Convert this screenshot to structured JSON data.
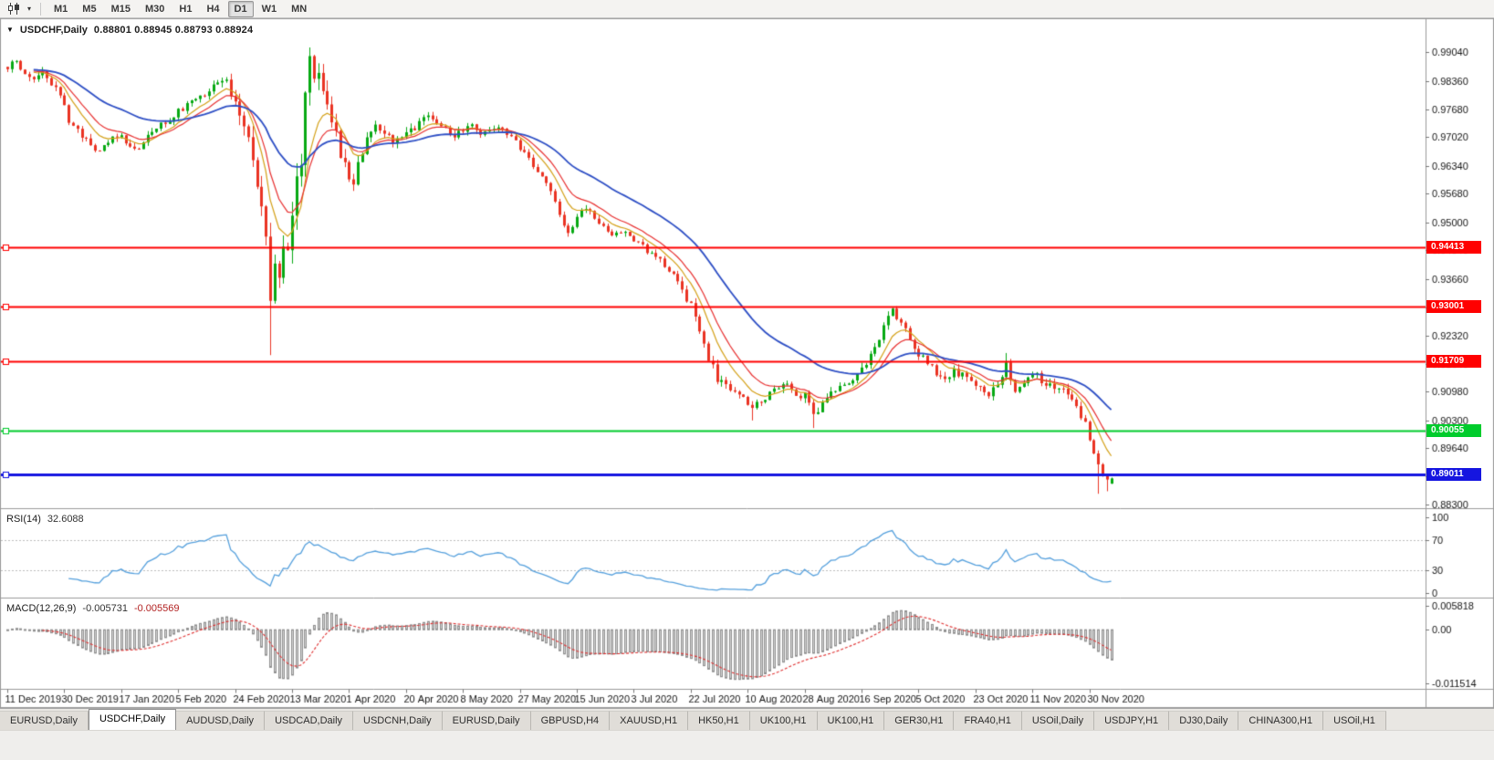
{
  "toolbar": {
    "timeframes": [
      "M1",
      "M5",
      "M15",
      "M30",
      "H1",
      "H4",
      "D1",
      "W1",
      "MN"
    ],
    "active_timeframe": "D1"
  },
  "chart": {
    "symbol_period": "USDCHF,Daily",
    "ohlc_text": "0.88801 0.88945 0.88793 0.88924"
  },
  "chart_data": {
    "type": "candlestick",
    "symbol": "USDCHF",
    "period": "Daily",
    "last_candle": {
      "open": 0.88801,
      "high": 0.88945,
      "low": 0.88793,
      "close": 0.88924
    },
    "num_candles": 253,
    "candles_per_date_label": 13,
    "date_labels": [
      "11 Dec 2019",
      "30 Dec 2019",
      "17 Jan 2020",
      "5 Feb 2020",
      "24 Feb 2020",
      "13 Mar 2020",
      "1 Apr 2020",
      "20 Apr 2020",
      "8 May 2020",
      "27 May 2020",
      "15 Jun 2020",
      "3 Jul 2020",
      "22 Jul 2020",
      "10 Aug 2020",
      "28 Aug 2020",
      "16 Sep 2020",
      "5 Oct 2020",
      "23 Oct 2020",
      "11 Nov 2020",
      "30 Nov 2020"
    ],
    "price_axis": {
      "max": 0.998,
      "min": 0.8824,
      "ticks": [
        "0.99040",
        "0.98360",
        "0.97680",
        "0.97020",
        "0.96340",
        "0.95680",
        "0.95000",
        "0.94340",
        "0.93660",
        "0.92980",
        "0.92320",
        "0.91640",
        "0.90980",
        "0.90300",
        "0.89640",
        "0.88980",
        "0.88300"
      ]
    },
    "close_anchors": [
      [
        0,
        0.9865
      ],
      [
        2,
        0.9882
      ],
      [
        4,
        0.9858
      ],
      [
        6,
        0.9846
      ],
      [
        8,
        0.9858
      ],
      [
        10,
        0.983
      ],
      [
        12,
        0.9808
      ],
      [
        14,
        0.9742
      ],
      [
        16,
        0.9718
      ],
      [
        18,
        0.97
      ],
      [
        20,
        0.9672
      ],
      [
        22,
        0.9682
      ],
      [
        24,
        0.9696
      ],
      [
        26,
        0.9706
      ],
      [
        28,
        0.9678
      ],
      [
        30,
        0.9672
      ],
      [
        32,
        0.97
      ],
      [
        34,
        0.9722
      ],
      [
        36,
        0.9738
      ],
      [
        38,
        0.9756
      ],
      [
        40,
        0.977
      ],
      [
        42,
        0.9788
      ],
      [
        44,
        0.98
      ],
      [
        46,
        0.9816
      ],
      [
        48,
        0.9832
      ],
      [
        50,
        0.984
      ],
      [
        52,
        0.9786
      ],
      [
        54,
        0.9716
      ],
      [
        56,
        0.965
      ],
      [
        58,
        0.9556
      ],
      [
        60,
        0.933
      ],
      [
        61,
        0.939
      ],
      [
        62,
        0.9372
      ],
      [
        63,
        0.942
      ],
      [
        64,
        0.9452
      ],
      [
        65,
        0.95
      ],
      [
        66,
        0.9594
      ],
      [
        67,
        0.966
      ],
      [
        68,
        0.9788
      ],
      [
        69,
        0.9872
      ],
      [
        70,
        0.984
      ],
      [
        71,
        0.9846
      ],
      [
        72,
        0.98
      ],
      [
        73,
        0.9762
      ],
      [
        74,
        0.973
      ],
      [
        75,
        0.97
      ],
      [
        76,
        0.966
      ],
      [
        77,
        0.9628
      ],
      [
        78,
        0.96
      ],
      [
        79,
        0.9578
      ],
      [
        80,
        0.9648
      ],
      [
        82,
        0.97
      ],
      [
        84,
        0.9742
      ],
      [
        86,
        0.9712
      ],
      [
        88,
        0.9682
      ],
      [
        90,
        0.97
      ],
      [
        92,
        0.9716
      ],
      [
        94,
        0.9736
      ],
      [
        96,
        0.9752
      ],
      [
        98,
        0.9736
      ],
      [
        100,
        0.9718
      ],
      [
        102,
        0.9702
      ],
      [
        104,
        0.9718
      ],
      [
        106,
        0.9736
      ],
      [
        108,
        0.9714
      ],
      [
        110,
        0.9722
      ],
      [
        112,
        0.973
      ],
      [
        114,
        0.9708
      ],
      [
        116,
        0.9692
      ],
      [
        118,
        0.9662
      ],
      [
        120,
        0.9636
      ],
      [
        122,
        0.961
      ],
      [
        124,
        0.957
      ],
      [
        126,
        0.952
      ],
      [
        128,
        0.9478
      ],
      [
        130,
        0.9512
      ],
      [
        132,
        0.9536
      ],
      [
        134,
        0.9512
      ],
      [
        136,
        0.9488
      ],
      [
        138,
        0.9472
      ],
      [
        140,
        0.9478
      ],
      [
        142,
        0.9464
      ],
      [
        144,
        0.945
      ],
      [
        146,
        0.9432
      ],
      [
        148,
        0.9416
      ],
      [
        150,
        0.9398
      ],
      [
        152,
        0.9376
      ],
      [
        154,
        0.934
      ],
      [
        156,
        0.93
      ],
      [
        158,
        0.924
      ],
      [
        160,
        0.918
      ],
      [
        162,
        0.913
      ],
      [
        164,
        0.911
      ],
      [
        166,
        0.9098
      ],
      [
        168,
        0.9086
      ],
      [
        170,
        0.906
      ],
      [
        172,
        0.9076
      ],
      [
        174,
        0.9092
      ],
      [
        176,
        0.9108
      ],
      [
        178,
        0.912
      ],
      [
        180,
        0.9092
      ],
      [
        182,
        0.9088
      ],
      [
        184,
        0.9044
      ],
      [
        186,
        0.9072
      ],
      [
        188,
        0.9092
      ],
      [
        190,
        0.9112
      ],
      [
        192,
        0.9124
      ],
      [
        194,
        0.9142
      ],
      [
        196,
        0.9166
      ],
      [
        198,
        0.92
      ],
      [
        200,
        0.9252
      ],
      [
        202,
        0.929
      ],
      [
        204,
        0.9262
      ],
      [
        206,
        0.9226
      ],
      [
        208,
        0.9186
      ],
      [
        210,
        0.9166
      ],
      [
        212,
        0.9146
      ],
      [
        214,
        0.9132
      ],
      [
        216,
        0.9146
      ],
      [
        218,
        0.9138
      ],
      [
        220,
        0.9128
      ],
      [
        222,
        0.9108
      ],
      [
        224,
        0.9086
      ],
      [
        226,
        0.9118
      ],
      [
        228,
        0.9162
      ],
      [
        230,
        0.9104
      ],
      [
        232,
        0.9126
      ],
      [
        234,
        0.9142
      ],
      [
        236,
        0.9126
      ],
      [
        238,
        0.9114
      ],
      [
        240,
        0.9104
      ],
      [
        242,
        0.9094
      ],
      [
        244,
        0.9066
      ],
      [
        246,
        0.902
      ],
      [
        247,
        0.8984
      ],
      [
        248,
        0.8952
      ],
      [
        249,
        0.892
      ],
      [
        250,
        0.8896
      ],
      [
        251,
        0.8886
      ],
      [
        252,
        0.8892
      ]
    ],
    "volatility_anchors": [
      [
        0,
        0.0018
      ],
      [
        48,
        0.0018
      ],
      [
        54,
        0.0045
      ],
      [
        60,
        0.006
      ],
      [
        66,
        0.006
      ],
      [
        72,
        0.0048
      ],
      [
        78,
        0.004
      ],
      [
        84,
        0.0026
      ],
      [
        95,
        0.0018
      ],
      [
        120,
        0.0016
      ],
      [
        150,
        0.0016
      ],
      [
        158,
        0.0024
      ],
      [
        166,
        0.0018
      ],
      [
        200,
        0.002
      ],
      [
        244,
        0.002
      ],
      [
        252,
        0.0012
      ]
    ],
    "wick_overrides": [
      {
        "i": 60,
        "low": 0.9185
      },
      {
        "i": 69,
        "high": 0.9901
      },
      {
        "i": 170,
        "low": 0.903
      },
      {
        "i": 184,
        "low": 0.9012
      },
      {
        "i": 228,
        "high": 0.919
      },
      {
        "i": 249,
        "low": 0.8856
      },
      {
        "i": 251,
        "low": 0.8862
      }
    ],
    "hlines": [
      {
        "price": 0.94413,
        "label": "0.94413",
        "color": "#FF0000",
        "width": 2
      },
      {
        "price": 0.93001,
        "label": "0.93001",
        "color": "#FF0000",
        "width": 2
      },
      {
        "price": 0.91709,
        "label": "0.91709",
        "color": "#FF0000",
        "width": 2
      },
      {
        "price": 0.90055,
        "label": "0.90055",
        "color": "#00CC2C",
        "width": 2
      },
      {
        "price": 0.89011,
        "label": "0.89011",
        "color": "#1515E0",
        "width": 3
      }
    ],
    "moving_averages": [
      {
        "period": 8,
        "type": "ema",
        "color": "#D4A017",
        "width": 1.2
      },
      {
        "period": 13,
        "type": "ema",
        "color": "#E83030",
        "width": 1.2
      },
      {
        "period": 34,
        "type": "ema",
        "color": "#2E4FC5",
        "width": 1.8
      }
    ],
    "colors": {
      "up": "#07A913",
      "down": "#EA3323",
      "background": "#FFFFFF",
      "axis_text": "#141414"
    },
    "rsi": {
      "name": "RSI(14)",
      "value": "32.6088",
      "period": 14,
      "levels": [
        30,
        70
      ],
      "axis_ticks": [
        100,
        70,
        30,
        0
      ],
      "color": "#55A0DD",
      "display_min": -5,
      "display_max": 108
    },
    "macd": {
      "name": "MACD(12,26,9)",
      "value_main": "-0.005731",
      "value_signal": "-0.005569",
      "fast": 12,
      "slow": 26,
      "signal": 9,
      "axis_top_label": "0.005818",
      "axis_zero_label": "0.00",
      "axis_bottom_label": "-0.011514",
      "display_min": -0.011514,
      "display_max": 0.005818,
      "histogram_color": "#D4D4D4",
      "histogram_border": "#8F8F8F",
      "signal_color": "#E03030"
    }
  },
  "tabs": {
    "items": [
      {
        "label": "EURUSD,Daily",
        "active": false
      },
      {
        "label": "USDCHF,Daily",
        "active": true
      },
      {
        "label": "AUDUSD,Daily",
        "active": false
      },
      {
        "label": "USDCAD,Daily",
        "active": false
      },
      {
        "label": "USDCNH,Daily",
        "active": false
      },
      {
        "label": "EURUSD,Daily",
        "active": false
      },
      {
        "label": "GBPUSD,H4",
        "active": false
      },
      {
        "label": "XAUUSD,H1",
        "active": false
      },
      {
        "label": "HK50,H1",
        "active": false
      },
      {
        "label": "UK100,H1",
        "active": false
      },
      {
        "label": "UK100,H1",
        "active": false
      },
      {
        "label": "GER30,H1",
        "active": false
      },
      {
        "label": "FRA40,H1",
        "active": false
      },
      {
        "label": "USOil,Daily",
        "active": false
      },
      {
        "label": "USDJPY,H1",
        "active": false
      },
      {
        "label": "DJ30,Daily",
        "active": false
      },
      {
        "label": "CHINA300,H1",
        "active": false
      },
      {
        "label": "USOil,H1",
        "active": false
      }
    ]
  }
}
